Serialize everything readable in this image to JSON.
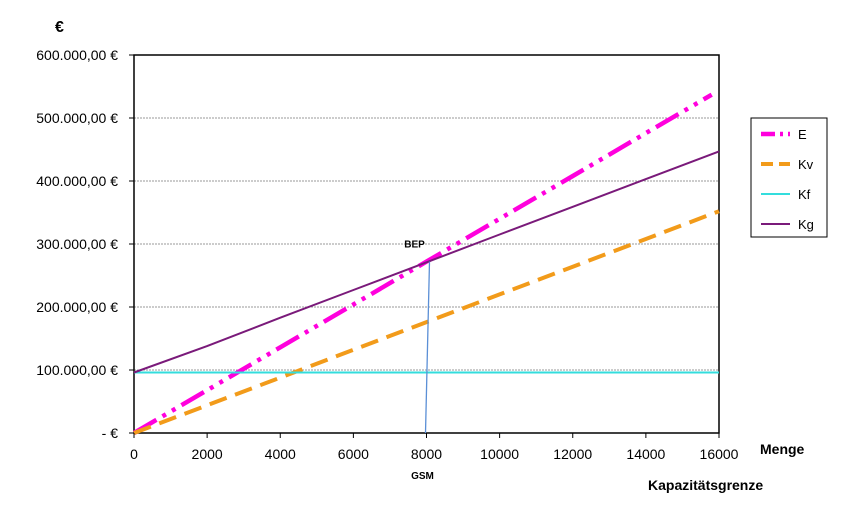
{
  "chart_data": {
    "type": "line",
    "ylabel": "€",
    "xlabel": "Menge",
    "xlabel2": "Kapazitätsgrenze",
    "xlim": [
      0,
      16000
    ],
    "ylim": [
      0,
      600000
    ],
    "x_ticks": [
      0,
      2000,
      4000,
      6000,
      8000,
      10000,
      12000,
      14000,
      16000
    ],
    "x_tick_labels": [
      "0",
      "2000",
      "4000",
      "6000",
      "8000",
      "10000",
      "12000",
      "14000",
      "16000"
    ],
    "y_ticks": [
      0,
      100000,
      200000,
      300000,
      400000,
      500000,
      600000
    ],
    "y_tick_labels": [
      "-   €",
      "100.000,00 €",
      "200.000,00 €",
      "300.000,00 €",
      "400.000,00 €",
      "500.000,00 €",
      "600.000,00 €"
    ],
    "grid": "horizontal",
    "legend": "right",
    "series": [
      {
        "name": "E",
        "color": "#ff00dd",
        "style": "dashdotdot",
        "x": [
          0,
          2000,
          4000,
          6000,
          8000,
          10000,
          12000,
          14000,
          15800
        ],
        "y": [
          0,
          68000,
          136000,
          204000,
          272000,
          340000,
          408000,
          476000,
          537000
        ]
      },
      {
        "name": "Kv",
        "color": "#f29b1a",
        "style": "dashed",
        "x": [
          0,
          2000,
          4000,
          6000,
          8000,
          10000,
          12000,
          14000,
          16000
        ],
        "y": [
          0,
          44000,
          88000,
          132000,
          176000,
          220000,
          264000,
          308000,
          352000
        ]
      },
      {
        "name": "Kf",
        "color": "#33dddd",
        "style": "solid",
        "x": [
          0,
          16000
        ],
        "y": [
          96000,
          96000
        ]
      },
      {
        "name": "Kg",
        "color": "#7a1a7a",
        "style": "solid",
        "x": [
          0,
          2000,
          4000,
          6000,
          8000,
          10000,
          12000,
          14000,
          16000
        ],
        "y": [
          96000,
          138000,
          183000,
          227000,
          271000,
          315000,
          359000,
          403000,
          447000
        ]
      }
    ],
    "annotations": [
      {
        "label": "BEP",
        "x": 8000,
        "y": 272000
      },
      {
        "label": "GSM",
        "x": 8000
      }
    ]
  }
}
